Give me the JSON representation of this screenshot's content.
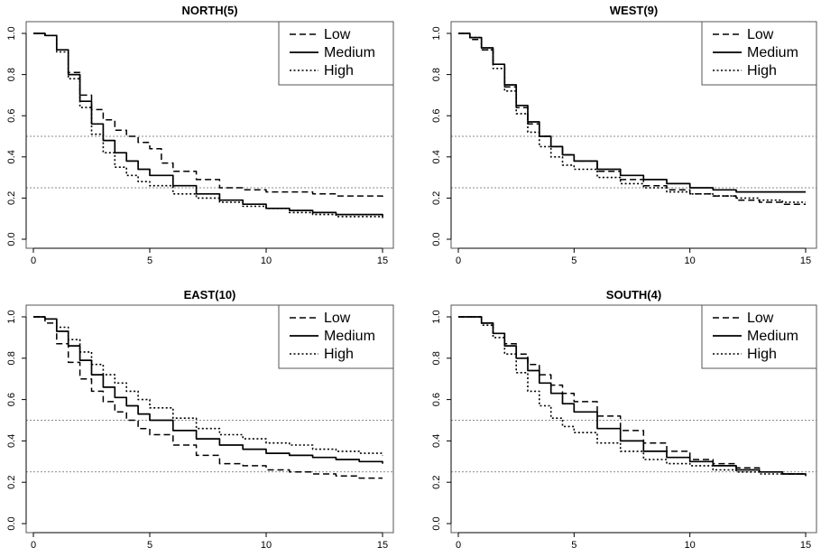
{
  "chart_data": [
    {
      "type": "line",
      "title": "NORTH(5)",
      "xlabel": "",
      "ylabel": "",
      "xlim": [
        0,
        15
      ],
      "ylim": [
        0,
        1
      ],
      "x_ticks": [
        "0",
        "5",
        "10",
        "15"
      ],
      "y_ticks": [
        "0.0",
        "0.2",
        "0.4",
        "0.6",
        "0.8",
        "1.0"
      ],
      "reference_lines": [
        0.5,
        0.25
      ],
      "legend": "top-right",
      "series": [
        {
          "name": "Low",
          "style": "dashed",
          "x": [
            0,
            0.5,
            1,
            1.5,
            2,
            2.5,
            3,
            3.5,
            4,
            4.5,
            5,
            5.5,
            6,
            7,
            8,
            9,
            10,
            11,
            12,
            13,
            14,
            15
          ],
          "y": [
            1.0,
            0.99,
            0.92,
            0.81,
            0.7,
            0.63,
            0.58,
            0.53,
            0.5,
            0.47,
            0.44,
            0.37,
            0.33,
            0.29,
            0.25,
            0.24,
            0.23,
            0.23,
            0.22,
            0.21,
            0.21,
            0.19
          ]
        },
        {
          "name": "Medium",
          "style": "solid",
          "x": [
            0,
            0.5,
            1,
            1.5,
            2,
            2.5,
            3,
            3.5,
            4,
            4.5,
            5,
            6,
            7,
            8,
            9,
            10,
            11,
            12,
            13,
            14,
            15
          ],
          "y": [
            1.0,
            0.99,
            0.92,
            0.8,
            0.67,
            0.56,
            0.48,
            0.42,
            0.38,
            0.34,
            0.31,
            0.26,
            0.22,
            0.19,
            0.17,
            0.15,
            0.14,
            0.13,
            0.12,
            0.12,
            0.11
          ]
        },
        {
          "name": "High",
          "style": "dotted",
          "x": [
            0,
            0.5,
            1,
            1.5,
            2,
            2.5,
            3,
            3.5,
            4,
            4.5,
            5,
            6,
            7,
            8,
            9,
            10,
            11,
            12,
            13,
            14,
            15
          ],
          "y": [
            1.0,
            0.99,
            0.91,
            0.78,
            0.64,
            0.51,
            0.42,
            0.35,
            0.31,
            0.28,
            0.26,
            0.22,
            0.2,
            0.18,
            0.16,
            0.15,
            0.13,
            0.12,
            0.11,
            0.11,
            0.1
          ]
        }
      ]
    },
    {
      "type": "line",
      "title": "WEST(9)",
      "xlabel": "",
      "ylabel": "",
      "xlim": [
        0,
        15
      ],
      "ylim": [
        0,
        1
      ],
      "x_ticks": [
        "0",
        "5",
        "10",
        "15"
      ],
      "y_ticks": [
        "0.0",
        "0.2",
        "0.4",
        "0.6",
        "0.8",
        "1.0"
      ],
      "reference_lines": [
        0.5,
        0.25
      ],
      "legend": "top-right",
      "series": [
        {
          "name": "Low",
          "style": "dashed",
          "x": [
            0,
            0.5,
            1,
            1.5,
            2,
            2.5,
            3,
            3.5,
            4,
            4.5,
            5,
            6,
            7,
            8,
            9,
            10,
            11,
            12,
            13,
            14,
            15
          ],
          "y": [
            1.0,
            0.97,
            0.92,
            0.85,
            0.74,
            0.64,
            0.56,
            0.5,
            0.45,
            0.41,
            0.38,
            0.33,
            0.29,
            0.26,
            0.24,
            0.22,
            0.21,
            0.19,
            0.18,
            0.17,
            0.17
          ]
        },
        {
          "name": "Medium",
          "style": "solid",
          "x": [
            0,
            0.5,
            1,
            1.5,
            2,
            2.5,
            3,
            3.5,
            4,
            4.5,
            5,
            6,
            7,
            8,
            9,
            10,
            11,
            12,
            13,
            14,
            15
          ],
          "y": [
            1.0,
            0.98,
            0.93,
            0.85,
            0.75,
            0.65,
            0.57,
            0.5,
            0.45,
            0.41,
            0.38,
            0.34,
            0.31,
            0.29,
            0.27,
            0.25,
            0.24,
            0.23,
            0.23,
            0.23,
            0.23
          ]
        },
        {
          "name": "High",
          "style": "dotted",
          "x": [
            0,
            0.5,
            1,
            1.5,
            2,
            2.5,
            3,
            3.5,
            4,
            4.5,
            5,
            6,
            7,
            8,
            9,
            10,
            11,
            12,
            13,
            14,
            15
          ],
          "y": [
            1.0,
            0.98,
            0.92,
            0.83,
            0.72,
            0.61,
            0.52,
            0.45,
            0.4,
            0.36,
            0.34,
            0.3,
            0.27,
            0.25,
            0.23,
            0.22,
            0.21,
            0.2,
            0.19,
            0.18,
            0.18
          ]
        }
      ]
    },
    {
      "type": "line",
      "title": "EAST(10)",
      "xlabel": "",
      "ylabel": "",
      "xlim": [
        0,
        15
      ],
      "ylim": [
        0,
        1
      ],
      "x_ticks": [
        "0",
        "5",
        "10",
        "15"
      ],
      "y_ticks": [
        "0.0",
        "0.2",
        "0.4",
        "0.6",
        "0.8",
        "1.0"
      ],
      "reference_lines": [
        0.5,
        0.25
      ],
      "legend": "top-right",
      "series": [
        {
          "name": "Low",
          "style": "dashed",
          "x": [
            0,
            0.5,
            1,
            1.5,
            2,
            2.5,
            3,
            3.5,
            4,
            4.5,
            5,
            6,
            7,
            8,
            9,
            10,
            11,
            12,
            13,
            14,
            15
          ],
          "y": [
            1.0,
            0.97,
            0.87,
            0.78,
            0.7,
            0.64,
            0.59,
            0.54,
            0.5,
            0.46,
            0.43,
            0.38,
            0.33,
            0.29,
            0.28,
            0.26,
            0.25,
            0.24,
            0.23,
            0.22,
            0.22
          ]
        },
        {
          "name": "Medium",
          "style": "solid",
          "x": [
            0,
            0.5,
            1,
            1.5,
            2,
            2.5,
            3,
            3.5,
            4,
            4.5,
            5,
            6,
            7,
            8,
            9,
            10,
            11,
            12,
            13,
            14,
            15
          ],
          "y": [
            1.0,
            0.99,
            0.93,
            0.86,
            0.79,
            0.72,
            0.66,
            0.61,
            0.57,
            0.53,
            0.5,
            0.45,
            0.41,
            0.38,
            0.36,
            0.34,
            0.33,
            0.32,
            0.31,
            0.3,
            0.29
          ]
        },
        {
          "name": "High",
          "style": "dotted",
          "x": [
            0,
            0.5,
            1,
            1.5,
            2,
            2.5,
            3,
            3.5,
            4,
            4.5,
            5,
            6,
            7,
            8,
            9,
            10,
            11,
            12,
            13,
            14,
            15
          ],
          "y": [
            1.0,
            0.99,
            0.95,
            0.89,
            0.83,
            0.77,
            0.72,
            0.68,
            0.64,
            0.6,
            0.56,
            0.51,
            0.46,
            0.43,
            0.41,
            0.39,
            0.38,
            0.36,
            0.35,
            0.34,
            0.33
          ]
        }
      ]
    },
    {
      "type": "line",
      "title": "SOUTH(4)",
      "xlabel": "",
      "ylabel": "",
      "xlim": [
        0,
        15
      ],
      "ylim": [
        0,
        1
      ],
      "x_ticks": [
        "0",
        "5",
        "10",
        "15"
      ],
      "y_ticks": [
        "0.0",
        "0.2",
        "0.4",
        "0.6",
        "0.8",
        "1.0"
      ],
      "reference_lines": [
        0.5,
        0.25
      ],
      "legend": "top-right",
      "series": [
        {
          "name": "Low",
          "style": "dashed",
          "x": [
            0,
            0.5,
            1,
            1.5,
            2,
            2.5,
            3,
            3.5,
            4,
            4.5,
            5,
            6,
            7,
            8,
            9,
            10,
            11,
            12,
            13,
            14,
            15
          ],
          "y": [
            1.0,
            1.0,
            0.97,
            0.92,
            0.87,
            0.82,
            0.77,
            0.72,
            0.67,
            0.63,
            0.59,
            0.52,
            0.45,
            0.39,
            0.35,
            0.31,
            0.29,
            0.27,
            0.25,
            0.24,
            0.23
          ]
        },
        {
          "name": "Medium",
          "style": "solid",
          "x": [
            0,
            0.5,
            1,
            1.5,
            2,
            2.5,
            3,
            3.5,
            4,
            4.5,
            5,
            6,
            7,
            8,
            9,
            10,
            11,
            12,
            13,
            14,
            15
          ],
          "y": [
            1.0,
            1.0,
            0.97,
            0.92,
            0.86,
            0.8,
            0.74,
            0.68,
            0.63,
            0.58,
            0.54,
            0.46,
            0.4,
            0.35,
            0.32,
            0.3,
            0.28,
            0.26,
            0.25,
            0.24,
            0.23
          ]
        },
        {
          "name": "High",
          "style": "dotted",
          "x": [
            0,
            0.5,
            1,
            1.5,
            2,
            2.5,
            3,
            3.5,
            4,
            4.5,
            5,
            6,
            7,
            8,
            9,
            10,
            11,
            12,
            13,
            14,
            15
          ],
          "y": [
            1.0,
            1.0,
            0.96,
            0.9,
            0.82,
            0.73,
            0.64,
            0.57,
            0.51,
            0.47,
            0.44,
            0.39,
            0.35,
            0.31,
            0.29,
            0.28,
            0.26,
            0.25,
            0.24,
            0.24,
            0.24
          ]
        }
      ]
    }
  ]
}
